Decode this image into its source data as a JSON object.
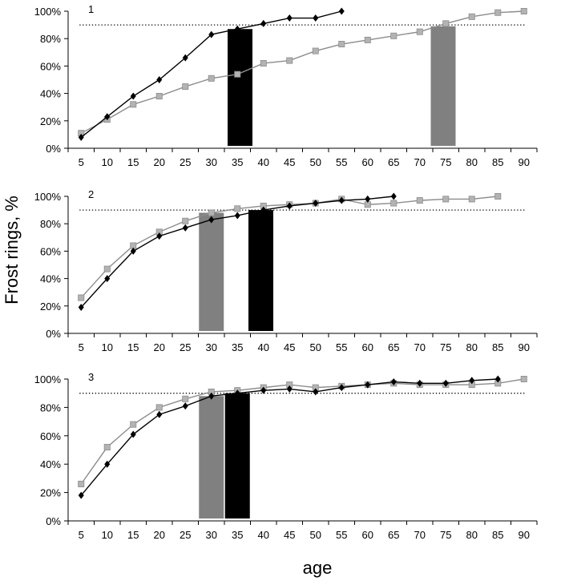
{
  "figure": {
    "ylabel": "Frost rings, %",
    "xlabel": "age"
  },
  "colors": {
    "black_series": "#000000",
    "gray_series": "#8c8c8c",
    "gray_marker_fill": "#b3b3b3",
    "black_bar": "#000000",
    "gray_bar": "#808080",
    "threshold_line": "#000000"
  },
  "chart_data": [
    {
      "type": "line",
      "panel_label": "1",
      "x_ticks": [
        5,
        10,
        15,
        20,
        25,
        30,
        35,
        40,
        45,
        50,
        55,
        60,
        65,
        70,
        75,
        80,
        85,
        90
      ],
      "y_ticks": [
        "0%",
        "20%",
        "40%",
        "60%",
        "80%",
        "100%"
      ],
      "ylim": [
        0,
        100
      ],
      "xlim": [
        2.5,
        92.5
      ],
      "threshold": 90,
      "threshold_style": "dotted",
      "series": [
        {
          "style": "black-diamond",
          "x": [
            5,
            10,
            15,
            20,
            25,
            30,
            35,
            40,
            45,
            50,
            55
          ],
          "y": [
            8,
            23,
            38,
            50,
            66,
            83,
            87,
            91,
            95,
            95,
            100
          ]
        },
        {
          "style": "gray-square",
          "x": [
            5,
            10,
            15,
            20,
            25,
            30,
            35,
            40,
            45,
            50,
            55,
            60,
            65,
            70,
            75,
            80,
            85,
            90
          ],
          "y": [
            11,
            21,
            32,
            38,
            45,
            51,
            54,
            62,
            64,
            71,
            76,
            79,
            82,
            85,
            91,
            96,
            99,
            100
          ]
        }
      ],
      "bars": [
        {
          "style": "black",
          "x": 35.5,
          "value": 87
        },
        {
          "style": "gray",
          "x": 74.5,
          "value": 89
        }
      ]
    },
    {
      "type": "line",
      "panel_label": "2",
      "x_ticks": [
        5,
        10,
        15,
        20,
        25,
        30,
        35,
        40,
        45,
        50,
        55,
        60,
        65,
        70,
        75,
        80,
        85,
        90
      ],
      "y_ticks": [
        "0%",
        "20%",
        "40%",
        "60%",
        "80%",
        "100%"
      ],
      "ylim": [
        0,
        100
      ],
      "xlim": [
        2.5,
        92.5
      ],
      "threshold": 90,
      "threshold_style": "dotted",
      "series": [
        {
          "style": "black-diamond",
          "x": [
            5,
            10,
            15,
            20,
            25,
            30,
            35,
            40,
            45,
            50,
            55,
            60,
            65
          ],
          "y": [
            19,
            40,
            60,
            71,
            77,
            83,
            86,
            90,
            93,
            95,
            97,
            98,
            100
          ]
        },
        {
          "style": "gray-square",
          "x": [
            5,
            10,
            15,
            20,
            25,
            30,
            35,
            40,
            45,
            50,
            55,
            60,
            65,
            70,
            75,
            80,
            85
          ],
          "y": [
            26,
            47,
            64,
            74,
            82,
            88,
            91,
            93,
            94,
            95,
            98,
            94,
            95,
            97,
            98,
            98,
            100
          ]
        }
      ],
      "bars": [
        {
          "style": "gray",
          "x": 30,
          "value": 88
        },
        {
          "style": "black",
          "x": 39.5,
          "value": 90
        }
      ]
    },
    {
      "type": "line",
      "panel_label": "3",
      "x_ticks": [
        5,
        10,
        15,
        20,
        25,
        30,
        35,
        40,
        45,
        50,
        55,
        60,
        65,
        70,
        75,
        80,
        85,
        90
      ],
      "y_ticks": [
        "0%",
        "20%",
        "40%",
        "60%",
        "80%",
        "100%"
      ],
      "ylim": [
        0,
        100
      ],
      "xlim": [
        2.5,
        92.5
      ],
      "threshold": 90,
      "threshold_style": "dotted",
      "series": [
        {
          "style": "black-diamond",
          "x": [
            5,
            10,
            15,
            20,
            25,
            30,
            35,
            40,
            45,
            50,
            55,
            60,
            65,
            70,
            75,
            80,
            85
          ],
          "y": [
            18,
            40,
            61,
            75,
            81,
            88,
            90,
            92,
            93,
            91,
            94,
            96,
            98,
            97,
            97,
            99,
            100
          ]
        },
        {
          "style": "gray-square",
          "x": [
            5,
            10,
            15,
            20,
            25,
            30,
            35,
            40,
            45,
            50,
            55,
            60,
            65,
            70,
            75,
            80,
            85,
            90
          ],
          "y": [
            26,
            52,
            68,
            80,
            86,
            91,
            92,
            94,
            96,
            94,
            95,
            96,
            97,
            96,
            96,
            96,
            97,
            100
          ]
        }
      ],
      "bars": [
        {
          "style": "gray",
          "x": 30,
          "value": 88
        },
        {
          "style": "black",
          "x": 35,
          "value": 90
        }
      ]
    }
  ]
}
